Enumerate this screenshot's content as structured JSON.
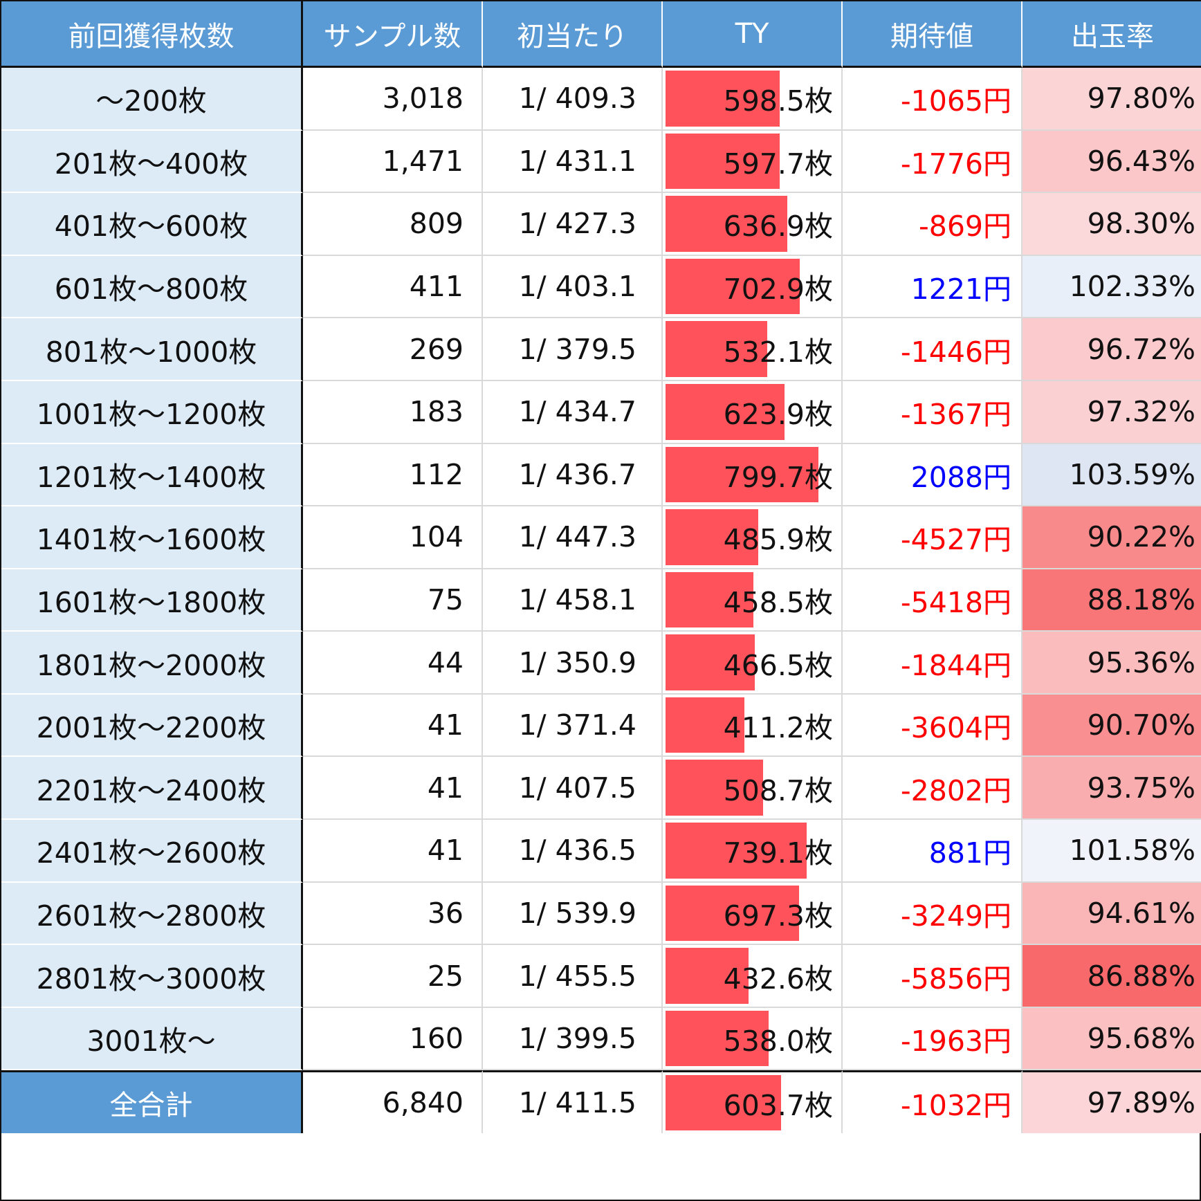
{
  "headers": [
    "前回獲得枚数",
    "サンプル数",
    "初当たり",
    "TY",
    "期待値",
    "出玉率"
  ],
  "colors": {
    "header_bg": "#5b9bd5",
    "label_bg": "#ddebf7",
    "bar": "#ff525a",
    "negative_text": "#ff0000",
    "positive_text": "#0000ff",
    "payout_good": "#dae3f3",
    "payout_bad": "#f8696b"
  },
  "rows": [
    {
      "label": "～200枚",
      "samples": "3,018",
      "hit": "1/ 409.3",
      "ty": "598.5枚",
      "ty_value": 598.5,
      "ev": "-1065円",
      "ev_value": -1065,
      "payout": "97.80%",
      "payout_value": 97.8
    },
    {
      "label": "201枚～400枚",
      "samples": "1,471",
      "hit": "1/ 431.1",
      "ty": "597.7枚",
      "ty_value": 597.7,
      "ev": "-1776円",
      "ev_value": -1776,
      "payout": "96.43%",
      "payout_value": 96.43
    },
    {
      "label": "401枚～600枚",
      "samples": "809",
      "hit": "1/ 427.3",
      "ty": "636.9枚",
      "ty_value": 636.9,
      "ev": "-869円",
      "ev_value": -869,
      "payout": "98.30%",
      "payout_value": 98.3
    },
    {
      "label": "601枚～800枚",
      "samples": "411",
      "hit": "1/ 403.1",
      "ty": "702.9枚",
      "ty_value": 702.9,
      "ev": "1221円",
      "ev_value": 1221,
      "payout": "102.33%",
      "payout_value": 102.33
    },
    {
      "label": "801枚～1000枚",
      "samples": "269",
      "hit": "1/ 379.5",
      "ty": "532.1枚",
      "ty_value": 532.1,
      "ev": "-1446円",
      "ev_value": -1446,
      "payout": "96.72%",
      "payout_value": 96.72
    },
    {
      "label": "1001枚～1200枚",
      "samples": "183",
      "hit": "1/ 434.7",
      "ty": "623.9枚",
      "ty_value": 623.9,
      "ev": "-1367円",
      "ev_value": -1367,
      "payout": "97.32%",
      "payout_value": 97.32
    },
    {
      "label": "1201枚～1400枚",
      "samples": "112",
      "hit": "1/ 436.7",
      "ty": "799.7枚",
      "ty_value": 799.7,
      "ev": "2088円",
      "ev_value": 2088,
      "payout": "103.59%",
      "payout_value": 103.59
    },
    {
      "label": "1401枚～1600枚",
      "samples": "104",
      "hit": "1/ 447.3",
      "ty": "485.9枚",
      "ty_value": 485.9,
      "ev": "-4527円",
      "ev_value": -4527,
      "payout": "90.22%",
      "payout_value": 90.22
    },
    {
      "label": "1601枚～1800枚",
      "samples": "75",
      "hit": "1/ 458.1",
      "ty": "458.5枚",
      "ty_value": 458.5,
      "ev": "-5418円",
      "ev_value": -5418,
      "payout": "88.18%",
      "payout_value": 88.18
    },
    {
      "label": "1801枚～2000枚",
      "samples": "44",
      "hit": "1/ 350.9",
      "ty": "466.5枚",
      "ty_value": 466.5,
      "ev": "-1844円",
      "ev_value": -1844,
      "payout": "95.36%",
      "payout_value": 95.36
    },
    {
      "label": "2001枚～2200枚",
      "samples": "41",
      "hit": "1/ 371.4",
      "ty": "411.2枚",
      "ty_value": 411.2,
      "ev": "-3604円",
      "ev_value": -3604,
      "payout": "90.70%",
      "payout_value": 90.7
    },
    {
      "label": "2201枚～2400枚",
      "samples": "41",
      "hit": "1/ 407.5",
      "ty": "508.7枚",
      "ty_value": 508.7,
      "ev": "-2802円",
      "ev_value": -2802,
      "payout": "93.75%",
      "payout_value": 93.75
    },
    {
      "label": "2401枚～2600枚",
      "samples": "41",
      "hit": "1/ 436.5",
      "ty": "739.1枚",
      "ty_value": 739.1,
      "ev": "881円",
      "ev_value": 881,
      "payout": "101.58%",
      "payout_value": 101.58
    },
    {
      "label": "2601枚～2800枚",
      "samples": "36",
      "hit": "1/ 539.9",
      "ty": "697.3枚",
      "ty_value": 697.3,
      "ev": "-3249円",
      "ev_value": -3249,
      "payout": "94.61%",
      "payout_value": 94.61
    },
    {
      "label": "2801枚～3000枚",
      "samples": "25",
      "hit": "1/ 455.5",
      "ty": "432.6枚",
      "ty_value": 432.6,
      "ev": "-5856円",
      "ev_value": -5856,
      "payout": "86.88%",
      "payout_value": 86.88
    },
    {
      "label": "3001枚～",
      "samples": "160",
      "hit": "1/ 399.5",
      "ty": "538.0枚",
      "ty_value": 538.0,
      "ev": "-1963円",
      "ev_value": -1963,
      "payout": "95.68%",
      "payout_value": 95.68
    }
  ],
  "total": {
    "label": "全合計",
    "samples": "6,840",
    "hit": "1/ 411.5",
    "ty": "603.7枚",
    "ty_value": 603.7,
    "ev": "-1032円",
    "ev_value": -1032,
    "payout": "97.89%",
    "payout_value": 97.89
  },
  "chart_data": {
    "type": "table",
    "columns": [
      "前回獲得枚数",
      "サンプル数",
      "初当たり",
      "TY",
      "期待値",
      "出玉率"
    ],
    "categories": [
      "～200枚",
      "201枚～400枚",
      "401枚～600枚",
      "601枚～800枚",
      "801枚～1000枚",
      "1001枚～1200枚",
      "1201枚～1400枚",
      "1401枚～1600枚",
      "1601枚～1800枚",
      "1801枚～2000枚",
      "2001枚～2200枚",
      "2201枚～2400枚",
      "2401枚～2600枚",
      "2601枚～2800枚",
      "2801枚～3000枚",
      "3001枚～",
      "全合計"
    ],
    "series": [
      {
        "name": "サンプル数",
        "values": [
          3018,
          1471,
          809,
          411,
          269,
          183,
          112,
          104,
          75,
          44,
          41,
          41,
          41,
          36,
          25,
          160,
          6840
        ]
      },
      {
        "name": "初当たり",
        "values": [
          409.3,
          431.1,
          427.3,
          403.1,
          379.5,
          434.7,
          436.7,
          447.3,
          458.1,
          350.9,
          371.4,
          407.5,
          436.5,
          539.9,
          455.5,
          399.5,
          411.5
        ]
      },
      {
        "name": "TY",
        "values": [
          598.5,
          597.7,
          636.9,
          702.9,
          532.1,
          623.9,
          799.7,
          485.9,
          458.5,
          466.5,
          411.2,
          508.7,
          739.1,
          697.3,
          432.6,
          538.0,
          603.7
        ]
      },
      {
        "name": "期待値",
        "values": [
          -1065,
          -1776,
          -869,
          1221,
          -1446,
          -1367,
          2088,
          -4527,
          -5418,
          -1844,
          -3604,
          -2802,
          881,
          -3249,
          -5856,
          -1963,
          -1032
        ]
      },
      {
        "name": "出玉率",
        "values": [
          97.8,
          96.43,
          98.3,
          102.33,
          96.72,
          97.32,
          103.59,
          90.22,
          88.18,
          95.36,
          90.7,
          93.75,
          101.58,
          94.61,
          86.88,
          95.68,
          97.89
        ]
      }
    ]
  }
}
